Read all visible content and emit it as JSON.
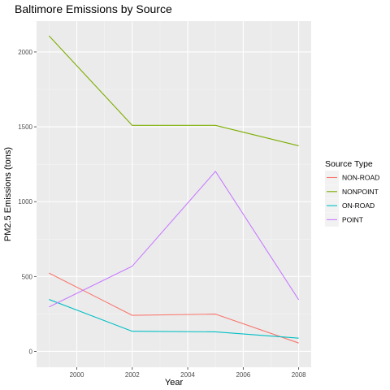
{
  "chart_data": {
    "type": "line",
    "title": "Baltimore Emissions by Source",
    "xlabel": "Year",
    "ylabel": "PM2.5 Emissions (tons)",
    "x": [
      1999,
      2002,
      2005,
      2008
    ],
    "xlim": [
      1998.55,
      2008.45
    ],
    "ylim": [
      -106,
      2206
    ],
    "xticks": [
      2000,
      2002,
      2004,
      2006,
      2008
    ],
    "xtick_labels": [
      "2000",
      "2002",
      "2004",
      "2006",
      "2008"
    ],
    "yticks": [
      0,
      500,
      1000,
      1500,
      2000
    ],
    "ytick_labels": [
      "0",
      "500",
      "1000",
      "1500",
      "2000"
    ],
    "grid": true,
    "legend": {
      "title": "Source Type",
      "position": "right"
    },
    "series": [
      {
        "name": "NON-ROAD",
        "color": "#F8766D",
        "values": [
          522.9,
          240.8,
          248.9,
          55.8
        ]
      },
      {
        "name": "NONPOINT",
        "color": "#7CAE00",
        "values": [
          2107.6,
          1509.5,
          1509.5,
          1373.2
        ]
      },
      {
        "name": "ON-ROAD",
        "color": "#00BFC4",
        "values": [
          346.8,
          134.3,
          130.4,
          88.3
        ]
      },
      {
        "name": "POINT",
        "color": "#C77CFF",
        "values": [
          296.8,
          569.3,
          1202.5,
          344.98
        ]
      }
    ]
  }
}
